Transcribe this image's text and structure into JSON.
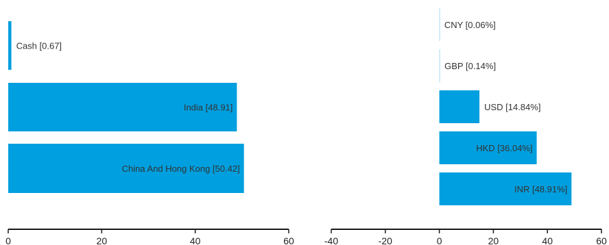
{
  "chart_data": [
    {
      "type": "bar",
      "orientation": "horizontal",
      "categories": [
        "Cash",
        "India",
        "China And Hong Kong"
      ],
      "values": [
        0.67,
        48.91,
        50.42
      ],
      "labels": [
        "Cash [0.67]",
        "India [48.91]",
        "China And Hong Kong [50.42]"
      ],
      "xlim": [
        0,
        60
      ],
      "xticks": [
        "0",
        "20",
        "40",
        "60"
      ],
      "color": "#009fdf",
      "grid": false
    },
    {
      "type": "bar",
      "orientation": "horizontal",
      "categories": [
        "CNY",
        "GBP",
        "USD",
        "HKD",
        "INR"
      ],
      "values": [
        0.06,
        0.14,
        14.84,
        36.04,
        48.91
      ],
      "labels": [
        "CNY [0.06%]",
        "GBP [0.14%]",
        "USD [14.84%]",
        "HKD [36.04%]",
        "INR [48.91%]"
      ],
      "xlim": [
        -40,
        60
      ],
      "xticks": [
        "-40",
        "-20",
        "0",
        "20",
        "40",
        "60"
      ],
      "colors": [
        "#a8d8f0",
        "#a8d8f0",
        "#009fdf",
        "#009fdf",
        "#009fdf"
      ],
      "grid": false
    }
  ]
}
